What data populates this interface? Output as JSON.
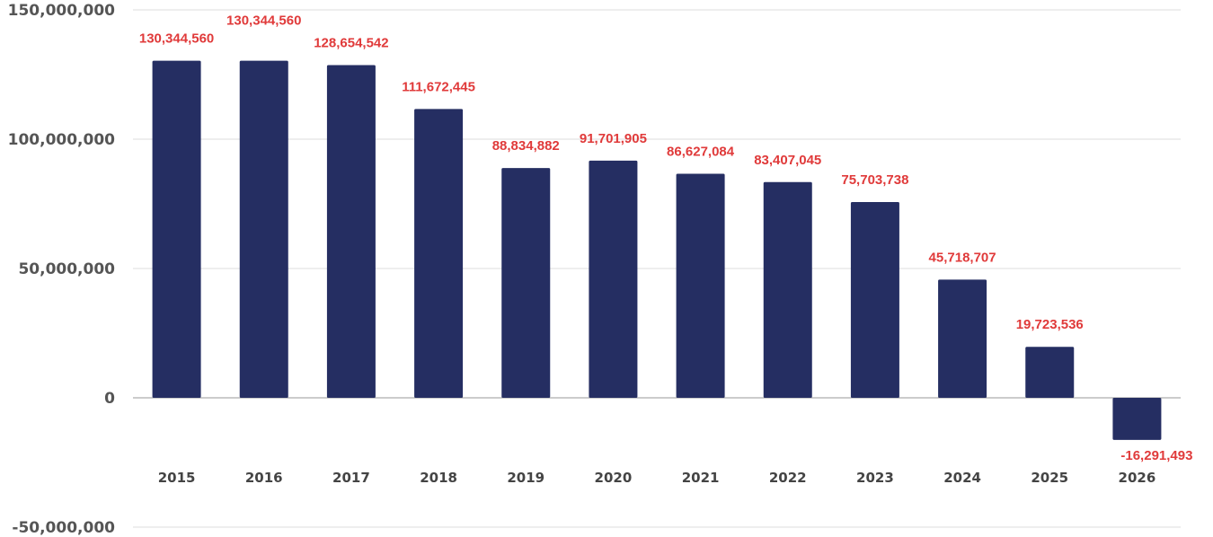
{
  "chart_data": {
    "type": "bar",
    "title": "",
    "xlabel": "",
    "ylabel": "",
    "categories": [
      "2015",
      "2016",
      "2017",
      "2018",
      "2019",
      "2020",
      "2021",
      "2022",
      "2023",
      "2024",
      "2025",
      "2026"
    ],
    "values": [
      130344560,
      130344560,
      128654542,
      111672445,
      88834882,
      91701905,
      86627084,
      83407045,
      75703738,
      45718707,
      19723536,
      -16291493
    ],
    "data_labels": [
      "130,344,560",
      "130,344,560",
      "128,654,542",
      "111,672,445",
      "88,834,882",
      "91,701,905",
      "86,627,084",
      "83,407,045",
      "75,703,738",
      "45,718,707",
      "19,723,536",
      "-16,291,493"
    ],
    "ylim": [
      -50000000,
      150000000
    ],
    "yticks": [
      150000000,
      100000000,
      50000000,
      0,
      -50000000
    ],
    "ytick_labels": [
      "150,000,000",
      "100,000,000",
      "50,000,000",
      "0",
      "-50,000,000"
    ],
    "grid": true,
    "legend": "none",
    "colors": {
      "bar": "#252e62",
      "data_label": "#e03a3a",
      "grid": "#dcdcdc"
    }
  }
}
